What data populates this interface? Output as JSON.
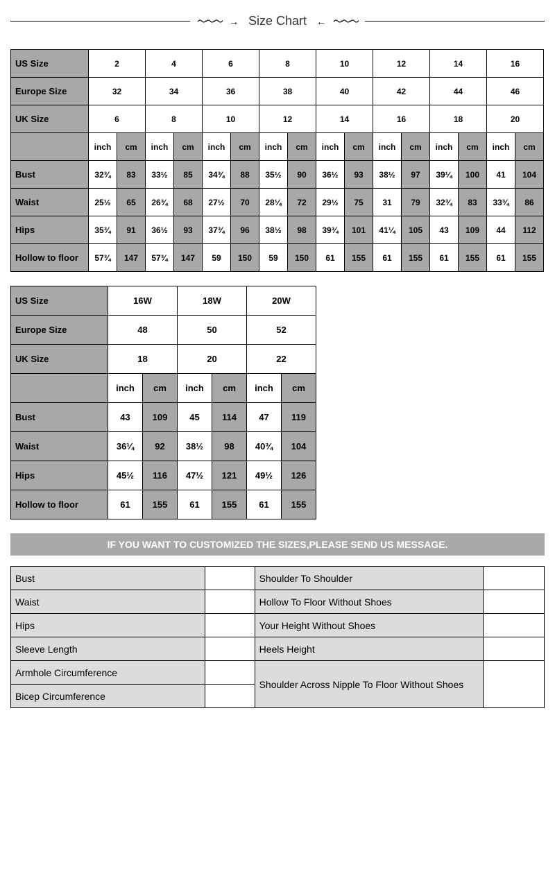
{
  "title": "Size Chart",
  "banner": "IF YOU WANT TO CUSTOMIZED THE SIZES,PLEASE SEND US MESSAGE.",
  "table1": {
    "size_headers": [
      "US Size",
      "Europe Size",
      "UK Size"
    ],
    "us": [
      "2",
      "4",
      "6",
      "8",
      "10",
      "12",
      "14",
      "16"
    ],
    "eu": [
      "32",
      "34",
      "36",
      "38",
      "40",
      "42",
      "44",
      "46"
    ],
    "uk": [
      "6",
      "8",
      "10",
      "12",
      "14",
      "16",
      "18",
      "20"
    ],
    "unit_labels": [
      "inch",
      "cm",
      "inch",
      "cm",
      "inch",
      "cm",
      "inch",
      "cm",
      "inch",
      "cm",
      "inch",
      "cm",
      "inch",
      "cm",
      "inch",
      "cm"
    ],
    "rows": [
      {
        "label": "Bust",
        "cells": [
          "32¾",
          "83",
          "33½",
          "85",
          "34¾",
          "88",
          "35½",
          "90",
          "36½",
          "93",
          "38½",
          "97",
          "39¼",
          "100",
          "41",
          "104"
        ]
      },
      {
        "label": "Waist",
        "cells": [
          "25½",
          "65",
          "26¾",
          "68",
          "27½",
          "70",
          "28¼",
          "72",
          "29½",
          "75",
          "31",
          "79",
          "32¾",
          "83",
          "33¾",
          "86"
        ]
      },
      {
        "label": "Hips",
        "cells": [
          "35¾",
          "91",
          "36½",
          "93",
          "37¾",
          "96",
          "38½",
          "98",
          "39¾",
          "101",
          "41¼",
          "105",
          "43",
          "109",
          "44",
          "112"
        ]
      },
      {
        "label": "Hollow to floor",
        "cells": [
          "57¾",
          "147",
          "57¾",
          "147",
          "59",
          "150",
          "59",
          "150",
          "61",
          "155",
          "61",
          "155",
          "61",
          "155",
          "61",
          "155"
        ]
      }
    ]
  },
  "table2": {
    "size_headers": [
      "US Size",
      "Europe Size",
      "UK Size"
    ],
    "us": [
      "16W",
      "18W",
      "20W"
    ],
    "eu": [
      "48",
      "50",
      "52"
    ],
    "uk": [
      "18",
      "20",
      "22"
    ],
    "unit_labels": [
      "inch",
      "cm",
      "inch",
      "cm",
      "inch",
      "cm"
    ],
    "rows": [
      {
        "label": "Bust",
        "cells": [
          "43",
          "109",
          "45",
          "114",
          "47",
          "119"
        ]
      },
      {
        "label": "Waist",
        "cells": [
          "36¼",
          "92",
          "38½",
          "98",
          "40¾",
          "104"
        ]
      },
      {
        "label": "Hips",
        "cells": [
          "45½",
          "116",
          "47½",
          "121",
          "49½",
          "126"
        ]
      },
      {
        "label": "Hollow to floor",
        "cells": [
          "61",
          "155",
          "61",
          "155",
          "61",
          "155"
        ]
      }
    ]
  },
  "form": {
    "left": [
      "Bust",
      "Waist",
      "Hips",
      "Sleeve Length",
      "Armhole Circumference",
      "Bicep Circumference"
    ],
    "right": [
      "Shoulder To Shoulder",
      "Hollow To Floor Without Shoes",
      "Your Height Without Shoes",
      "Heels Height",
      "Shoulder Across Nipple To Floor Without Shoes"
    ]
  },
  "colors": {
    "grey": "#a8a8a8",
    "light_grey": "#dcdcdc",
    "white": "#ffffff",
    "border": "#000000",
    "text": "#000000"
  }
}
